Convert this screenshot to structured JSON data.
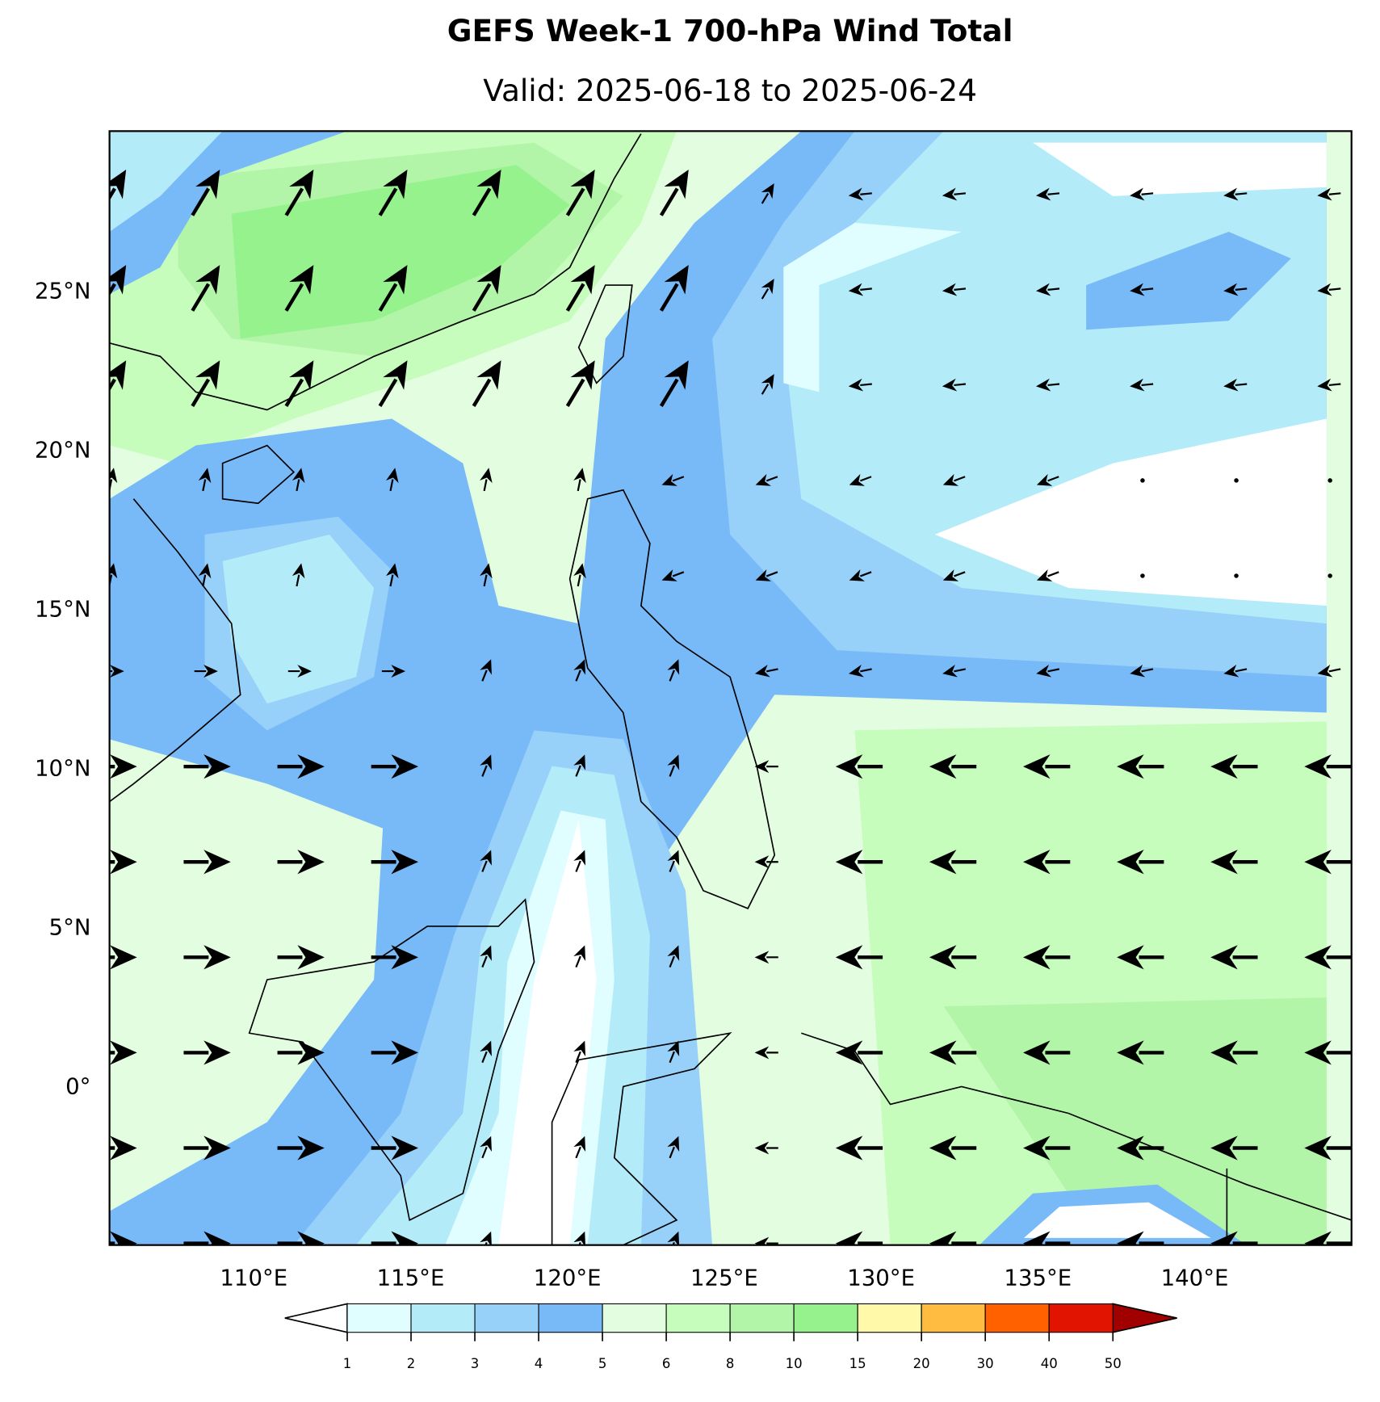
{
  "map": {
    "title": "GEFS Week-1 700-hPa Wind Total",
    "subtitle": "Valid: 2025-06-18 to 2025-06-24",
    "lon_range": [
      105.4,
      145
    ],
    "lat_range": [
      -5,
      30
    ],
    "lon_ticks": [
      {
        "value": 110,
        "label": "110°E"
      },
      {
        "value": 115,
        "label": "115°E"
      },
      {
        "value": 120,
        "label": "120°E"
      },
      {
        "value": 125,
        "label": "125°E"
      },
      {
        "value": 130,
        "label": "130°E"
      },
      {
        "value": 135,
        "label": "135°E"
      },
      {
        "value": 140,
        "label": "140°E"
      }
    ],
    "lat_ticks": [
      {
        "value": 25,
        "label": "25°N"
      },
      {
        "value": 20,
        "label": "20°N"
      },
      {
        "value": 15,
        "label": "15°N"
      },
      {
        "value": 10,
        "label": "10°N"
      },
      {
        "value": 5,
        "label": "5°N"
      },
      {
        "value": 0,
        "label": "0°"
      }
    ],
    "colorbar": {
      "levels": [
        1,
        2,
        3,
        4,
        5,
        6,
        8,
        10,
        15,
        20,
        30,
        40,
        50
      ],
      "colors": [
        "#e0fdff",
        "#b3ecf8",
        "#97d0f8",
        "#78b9f8",
        "#e3fde0",
        "#c6fcbc",
        "#b3f5a8",
        "#96f28c",
        "#fff9a9",
        "#ffbc40",
        "#ff6000",
        "#e01400"
      ],
      "under_color": "#ffffff",
      "over_color": "#a00000"
    }
  }
}
